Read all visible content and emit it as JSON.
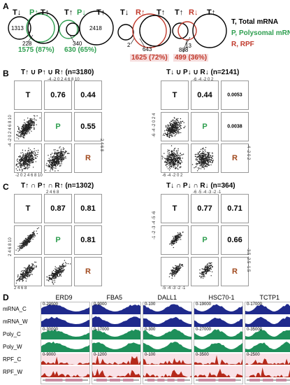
{
  "panel_letters": {
    "a": "A",
    "b": "B",
    "c": "C",
    "d": "D"
  },
  "venn": {
    "g1": {
      "t": "T↓",
      "p": "P↑",
      "t2": "T↑",
      "n1": "1313",
      "n2": "228",
      "pct": "1575 (87%)"
    },
    "g2": {
      "t": "T↑",
      "p": "P↓",
      "t2": "T↑",
      "n1": "340",
      "n2": "2418",
      "pct": "630 (65%)"
    },
    "g3": {
      "t": "T↓",
      "r": "R↑",
      "t2": "T↑",
      "n1": "2",
      "n2": "643",
      "pct": "1625 (72%)"
    },
    "g4": {
      "t": "T↑",
      "r": "R↓",
      "t2": "T↑",
      "n1": "13",
      "n2": "888",
      "pct": "499 (36%)"
    },
    "legend": {
      "t": "T, Total mRNA",
      "p": "P, Polysomal mRNA",
      "r": "R, RPF"
    }
  },
  "panel_b": {
    "left_title": "T↑ ∪ P↑ ∪ R↑ (n=3180)",
    "right_title": "T↓ ∪ P↓ ∪ R↓ (n=2141)",
    "left_vals": {
      "tp": "0.76",
      "tr": "0.44",
      "pr": "0.55"
    },
    "right_vals": {
      "tp": "0.44",
      "tr": "0.0053",
      "pr": "0.0038"
    },
    "labels": {
      "t": "T",
      "p": "P",
      "r": "R"
    },
    "left_xticks": "-4 -2 0 2 4 6 8 10",
    "left_bticks": "-2 0 2 4 6 8 10",
    "left_yticks": "-4 -2 0 2 4 6 8 10",
    "left_rticks": "2 4 6 8",
    "right_xticks": "-6 -4 -2 0 2",
    "right_bticks": "-6 -4 -2 0 2",
    "right_yticks": "-6 -4 -2 0 2 4",
    "right_rticks": "-4 -2 0 2"
  },
  "panel_c": {
    "left_title": "T↑ ∩ P↑ ∩ R↑ (n=1302)",
    "right_title": "T↓ ∩ P↓ ∩ R↓ (n=364)",
    "left_vals": {
      "tp": "0.87",
      "tr": "0.81",
      "pr": "0.81"
    },
    "right_vals": {
      "tp": "0.77",
      "tr": "0.71",
      "pr": "0.66"
    },
    "left_xticks": "2 4 6 8",
    "left_bticks": "2 4 6 8",
    "left_yticks": "2 4 6 8 10",
    "right_xticks": "-6 -5 -4 -3 -2 -1",
    "right_bticks": "-5 -4 -3 -2 -1",
    "right_yticks": "-1 -2 -3 -4 -5 -6",
    "right_rticks": "-3.5 -2.5 -1.5"
  },
  "panel_d": {
    "genes": [
      "ERD9",
      "FBA5",
      "DALL1",
      "HSC70-1",
      "TCTP1"
    ],
    "tracks": [
      "mRNA_C",
      "mRNA_W",
      "Poly_C",
      "Poly_W",
      "RPF_C",
      "RPF_W"
    ],
    "scales": {
      "mrna": [
        "0-20000",
        "0-9000",
        "0-100",
        "0-19000",
        "0-17000"
      ],
      "poly": [
        "0-30000",
        "0-17000",
        "0-300",
        "0-27000",
        "0-35000"
      ],
      "rpf": [
        "0-9000",
        "0-1200",
        "0-100",
        "0-3500",
        "0-2500"
      ]
    }
  },
  "colors": {
    "green": "#2e9e4f",
    "red": "#c0392b",
    "navy": "#1f2a8c",
    "teal": "#1e8f5a",
    "rpf": "#b52a1b",
    "pink": "#f3c6cf",
    "gene": "#c98aa0"
  }
}
